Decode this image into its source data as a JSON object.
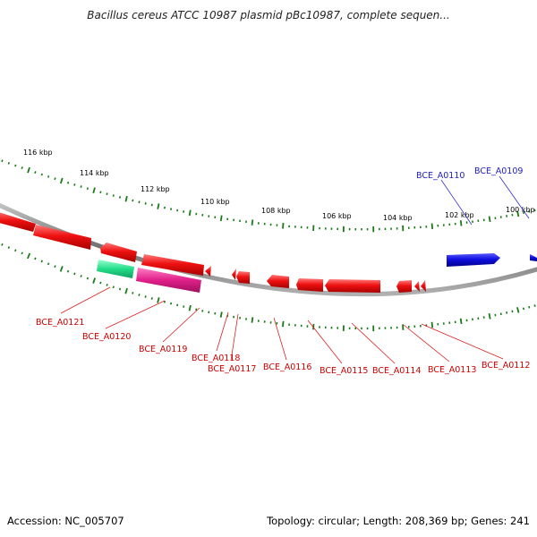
{
  "title": "Bacillus cereus ATCC 10987 plasmid pBc10987, complete sequen...",
  "footer": {
    "accession": "Accession: NC_005707",
    "summary": "Topology: circular; Length: 208,369 bp; Genes: 241"
  },
  "colors": {
    "forward_gene": "#1010e0",
    "reverse_gene": "#ee1111",
    "green_gene": "#22dd88",
    "pink_gene": "#e0208a",
    "tick": "#1a7a1a",
    "backbone": "#8a8a8a",
    "forward_label": "#2020c0",
    "reverse_label": "#cc0000"
  },
  "scale_labels": [
    "116 kbp",
    "114 kbp",
    "112 kbp",
    "110 kbp",
    "108 kbp",
    "106 kbp",
    "104 kbp",
    "102 kbp",
    "100 kbp"
  ],
  "forward_labels": [
    "BCE_A0110",
    "BCE_A0109"
  ],
  "reverse_labels": [
    "BCE_A0121",
    "BCE_A0120",
    "BCE_A0119",
    "BCE_A0118",
    "BCE_A0117",
    "BCE_A0116",
    "BCE_A0115",
    "BCE_A0114",
    "BCE_A0113",
    "BCE_A0112"
  ]
}
